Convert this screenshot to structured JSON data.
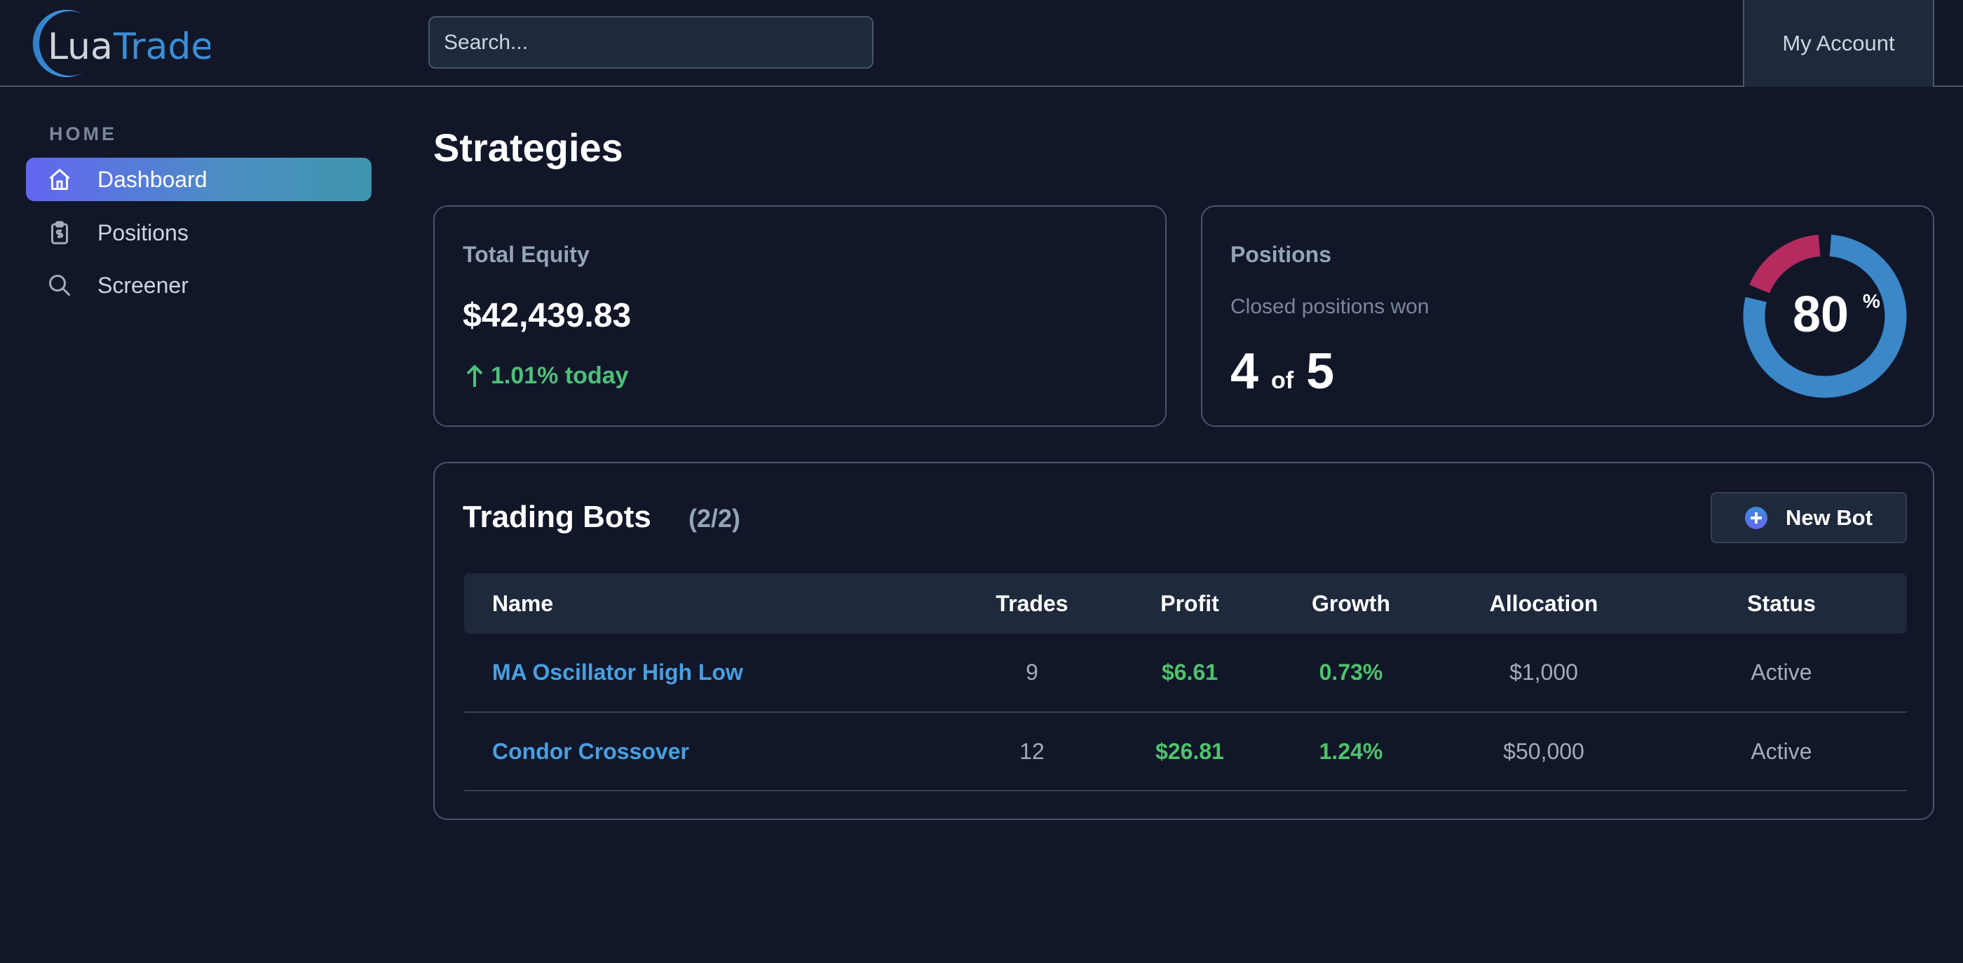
{
  "header": {
    "logo_text_1": "Lua",
    "logo_text_2": "Trade",
    "search_placeholder": "Search...",
    "account_label": "My Account"
  },
  "sidebar": {
    "section": "HOME",
    "items": [
      {
        "label": "Dashboard",
        "icon": "home-icon",
        "active": true
      },
      {
        "label": "Positions",
        "icon": "clipboard-dollar-icon"
      },
      {
        "label": "Screener",
        "icon": "search-icon"
      }
    ]
  },
  "page": {
    "title": "Strategies"
  },
  "equity": {
    "label": "Total Equity",
    "value": "$42,439.83",
    "change": "1.01% today",
    "change_icon": "arrow-up-icon"
  },
  "positions": {
    "label": "Positions",
    "sublabel": "Closed positions won",
    "won": "4",
    "of": "of",
    "total": "5",
    "percent": "80",
    "percent_sign": "%",
    "won_fraction": 0.8,
    "colors": {
      "won": "#3b87c8",
      "lost": "#b52b5f"
    }
  },
  "bots": {
    "title": "Trading Bots",
    "count": "(2/2)",
    "new_button": "New Bot",
    "columns": [
      "Name",
      "Trades",
      "Profit",
      "Growth",
      "Allocation",
      "Status"
    ],
    "rows": [
      [
        "MA Oscillator High Low",
        "9",
        "$6.61",
        "0.73%",
        "$1,000",
        "Active"
      ],
      [
        "Condor Crossover",
        "12",
        "$26.81",
        "1.24%",
        "$50,000",
        "Active"
      ]
    ]
  }
}
